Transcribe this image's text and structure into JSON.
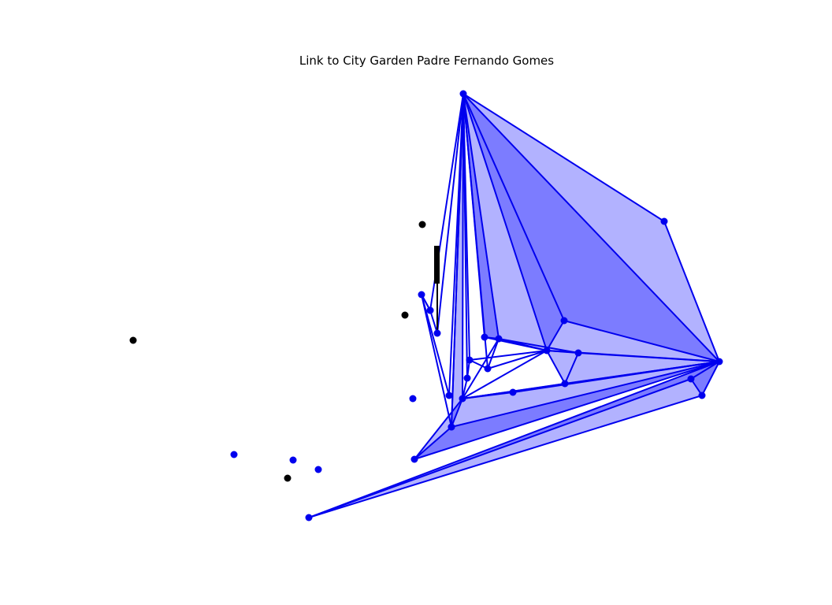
{
  "title": "Link to City Garden Padre Fernando Gomes",
  "colors": {
    "edge": "#0000ee",
    "node": "#0000ee",
    "fill": "#0000ff",
    "black_node": "#000000",
    "background": "#ffffff"
  },
  "graph": {
    "nodes": [
      {
        "id": "n_top",
        "kind": "blue"
      },
      {
        "id": "n_ne",
        "kind": "blue"
      },
      {
        "id": "n_e",
        "kind": "blue"
      },
      {
        "id": "n_se1",
        "kind": "blue"
      },
      {
        "id": "n_se2",
        "kind": "blue"
      },
      {
        "id": "n_c1",
        "kind": "blue"
      },
      {
        "id": "n_c2",
        "kind": "blue"
      },
      {
        "id": "n_c3",
        "kind": "blue"
      },
      {
        "id": "n_c4",
        "kind": "blue"
      },
      {
        "id": "n_c5",
        "kind": "blue"
      },
      {
        "id": "n_c6",
        "kind": "blue"
      },
      {
        "id": "n_c7",
        "kind": "blue"
      },
      {
        "id": "n_c8",
        "kind": "blue"
      },
      {
        "id": "n_c9",
        "kind": "blue"
      },
      {
        "id": "n_c10",
        "kind": "blue"
      },
      {
        "id": "n_c11",
        "kind": "blue"
      },
      {
        "id": "n_c12",
        "kind": "blue"
      },
      {
        "id": "n_c13",
        "kind": "blue"
      },
      {
        "id": "n_c14",
        "kind": "blue"
      },
      {
        "id": "n_w1",
        "kind": "blue"
      },
      {
        "id": "n_w2",
        "kind": "blue"
      },
      {
        "id": "n_w3",
        "kind": "blue"
      },
      {
        "id": "n_w4",
        "kind": "blue"
      },
      {
        "id": "n_w5",
        "kind": "blue"
      },
      {
        "id": "n_w6",
        "kind": "blue"
      },
      {
        "id": "n_sw",
        "kind": "blue"
      },
      {
        "id": "n_iso1",
        "kind": "blue"
      },
      {
        "id": "n_iso2",
        "kind": "blue"
      },
      {
        "id": "n_iso3",
        "kind": "blue"
      },
      {
        "id": "n_iso4",
        "kind": "blue"
      },
      {
        "id": "n_b1",
        "kind": "black"
      },
      {
        "id": "n_b2",
        "kind": "black"
      },
      {
        "id": "n_b3",
        "kind": "black"
      },
      {
        "id": "n_b4",
        "kind": "black"
      }
    ],
    "edges": [
      [
        "n_top",
        "n_ne"
      ],
      [
        "n_ne",
        "n_e"
      ],
      [
        "n_top",
        "n_e"
      ],
      [
        "n_top",
        "n_c1"
      ],
      [
        "n_top",
        "n_c2"
      ],
      [
        "n_top",
        "n_c3"
      ],
      [
        "n_top",
        "n_c4"
      ],
      [
        "n_top",
        "n_c5"
      ],
      [
        "n_top",
        "n_c6"
      ],
      [
        "n_top",
        "n_c7"
      ],
      [
        "n_top",
        "n_c8"
      ],
      [
        "n_top",
        "n_w1"
      ],
      [
        "n_top",
        "n_w2"
      ],
      [
        "n_top",
        "n_w3"
      ],
      [
        "n_top",
        "n_w4"
      ],
      [
        "n_top",
        "n_w5"
      ],
      [
        "n_c1",
        "n_e"
      ],
      [
        "n_c1",
        "n_c3"
      ],
      [
        "n_c3",
        "n_e"
      ],
      [
        "n_c3",
        "n_c2"
      ],
      [
        "n_c2",
        "n_c4"
      ],
      [
        "n_c3",
        "n_c4"
      ],
      [
        "n_c3",
        "n_c9"
      ],
      [
        "n_c3",
        "n_c10"
      ],
      [
        "n_c3",
        "n_c6"
      ],
      [
        "n_c3",
        "n_c5"
      ],
      [
        "n_c3",
        "n_c8"
      ],
      [
        "n_c4",
        "n_c8"
      ],
      [
        "n_c4",
        "n_c9"
      ],
      [
        "n_c9",
        "n_c10"
      ],
      [
        "n_c10",
        "n_c8"
      ],
      [
        "n_c8",
        "n_e"
      ],
      [
        "n_c9",
        "n_e"
      ],
      [
        "n_c10",
        "n_e"
      ],
      [
        "n_c11",
        "n_e"
      ],
      [
        "n_c6",
        "n_c4"
      ],
      [
        "n_c5",
        "n_c7"
      ],
      [
        "n_c7",
        "n_c8"
      ],
      [
        "n_c5",
        "n_c6"
      ],
      [
        "n_c8",
        "n_c11"
      ],
      [
        "n_c11",
        "n_c10"
      ],
      [
        "n_c8",
        "n_w5"
      ],
      [
        "n_w5",
        "n_w6"
      ],
      [
        "n_w6",
        "n_e"
      ],
      [
        "n_w5",
        "n_e"
      ],
      [
        "n_w6",
        "n_c8"
      ],
      [
        "n_e",
        "n_se1"
      ],
      [
        "n_e",
        "n_se2"
      ],
      [
        "n_se1",
        "n_se2"
      ],
      [
        "n_sw",
        "n_se2"
      ],
      [
        "n_sw",
        "n_se1"
      ],
      [
        "n_sw",
        "n_e"
      ],
      [
        "n_w1",
        "n_c12"
      ],
      [
        "n_c12",
        "n_w3"
      ],
      [
        "n_c12",
        "n_w4"
      ],
      [
        "n_c12",
        "n_c13"
      ],
      [
        "n_c13",
        "n_w2"
      ]
    ],
    "faces": [
      [
        "n_top",
        "n_ne",
        "n_e"
      ],
      [
        "n_top",
        "n_c1",
        "n_e"
      ],
      [
        "n_top",
        "n_c3",
        "n_e"
      ],
      [
        "n_top",
        "n_c1",
        "n_c3"
      ],
      [
        "n_top",
        "n_c2",
        "n_c3"
      ],
      [
        "n_top",
        "n_c4",
        "n_c2"
      ],
      [
        "n_c3",
        "n_c9",
        "n_e"
      ],
      [
        "n_c3",
        "n_c10",
        "n_e"
      ],
      [
        "n_c10",
        "n_c8",
        "n_e"
      ],
      [
        "n_top",
        "n_w5",
        "n_c8"
      ],
      [
        "n_w5",
        "n_w6",
        "n_e"
      ],
      [
        "n_w6",
        "n_c8",
        "n_e"
      ],
      [
        "n_sw",
        "n_se2",
        "n_e"
      ],
      [
        "n_sw",
        "n_se1",
        "n_e"
      ],
      [
        "n_e",
        "n_se1",
        "n_se2"
      ]
    ]
  }
}
